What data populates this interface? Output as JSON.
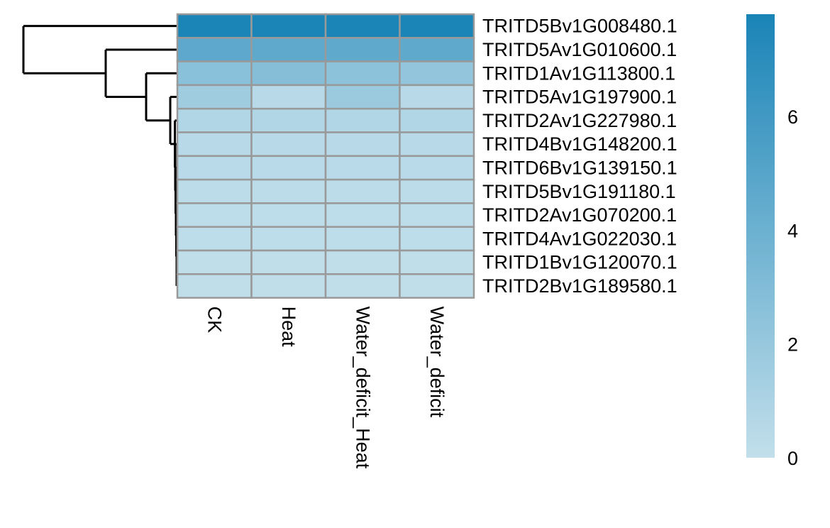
{
  "chart_data": {
    "type": "heatmap",
    "title": "",
    "columns": [
      "CK",
      "Heat",
      "Water_deficit_Heat",
      "Water_deficit"
    ],
    "rows": [
      "TRITD5Bv1G008480.1",
      "TRITD5Av1G010600.1",
      "TRITD1Av1G113800.1",
      "TRITD5Av1G197900.1",
      "TRITD2Av1G227980.1",
      "TRITD4Bv1G148200.1",
      "TRITD6Bv1G139150.1",
      "TRITD5Bv1G191180.1",
      "TRITD2Av1G070200.1",
      "TRITD4Av1G022030.1",
      "TRITD1Bv1G120070.1",
      "TRITD2Bv1G189580.1"
    ],
    "values": [
      [
        7.7,
        7.7,
        7.7,
        7.7
      ],
      [
        4.7,
        4.6,
        4.6,
        4.6
      ],
      [
        2.6,
        2.8,
        2.5,
        2.2
      ],
      [
        1.6,
        0.5,
        1.8,
        0.5
      ],
      [
        0.8,
        0.8,
        0.8,
        0.8
      ],
      [
        0.5,
        0.5,
        0.5,
        0.5
      ],
      [
        0.4,
        0.4,
        0.4,
        0.4
      ],
      [
        0.3,
        0.3,
        0.3,
        0.3
      ],
      [
        0.2,
        0.2,
        0.2,
        0.2
      ],
      [
        0.2,
        0.2,
        0.2,
        0.2
      ],
      [
        0.1,
        0.1,
        0.1,
        0.1
      ],
      [
        0.1,
        0.1,
        0.1,
        0.1
      ]
    ],
    "color_scale": {
      "min": 0,
      "max": 7.8,
      "low_color": "#c2dfeb",
      "high_color": "#1a84b7",
      "ticks": [
        0,
        2,
        4,
        6
      ]
    },
    "cell_border_color": "#999999",
    "row_dendrogram": true,
    "legend_placement": "right"
  }
}
